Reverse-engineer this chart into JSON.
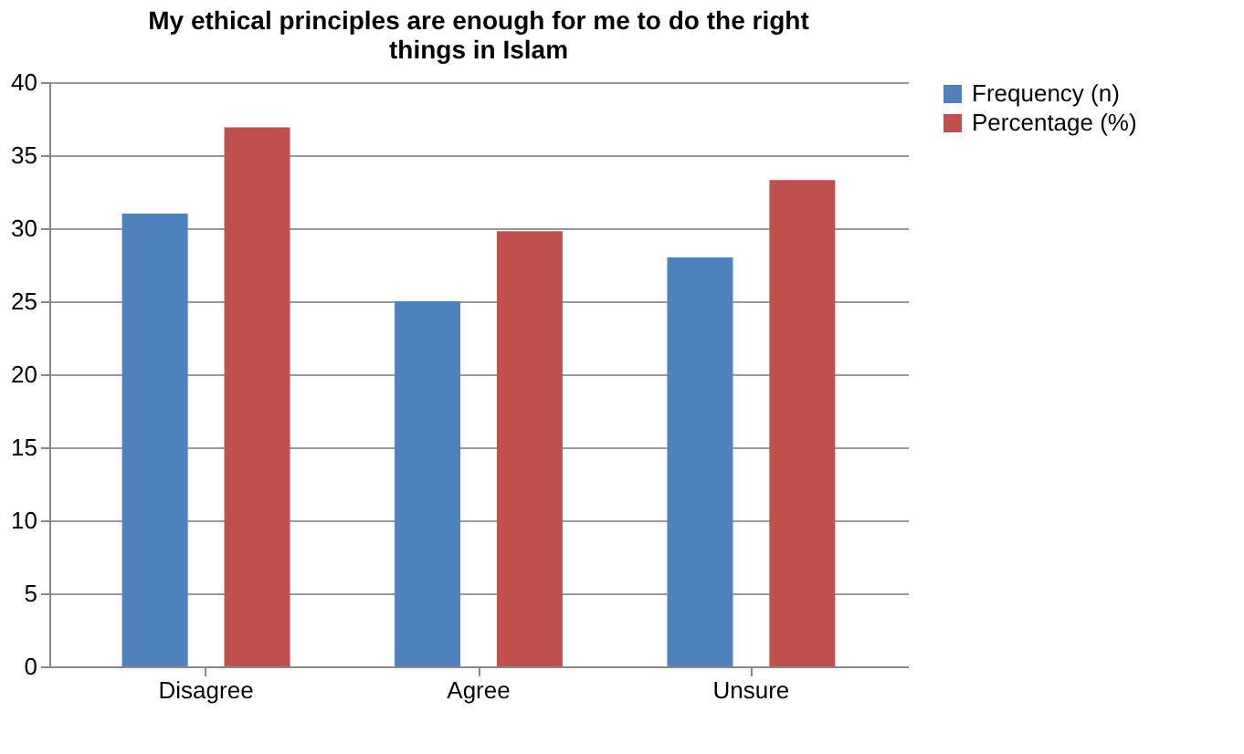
{
  "chart_data": {
    "type": "bar",
    "title": "My ethical principles are enough for me to do the right things in Islam",
    "categories": [
      "Disagree",
      "Agree",
      "Unsure"
    ],
    "series": [
      {
        "name": "Frequency (n)",
        "color": "#4f81bd",
        "values": [
          31,
          25,
          28
        ]
      },
      {
        "name": "Percentage (%)",
        "color": "#c0504d",
        "values": [
          36.9,
          29.8,
          33.3
        ]
      }
    ],
    "ylim": [
      0,
      40
    ],
    "yticks": [
      0,
      5,
      10,
      15,
      20,
      25,
      30,
      35,
      40
    ],
    "grid": "y",
    "legend": "right"
  }
}
